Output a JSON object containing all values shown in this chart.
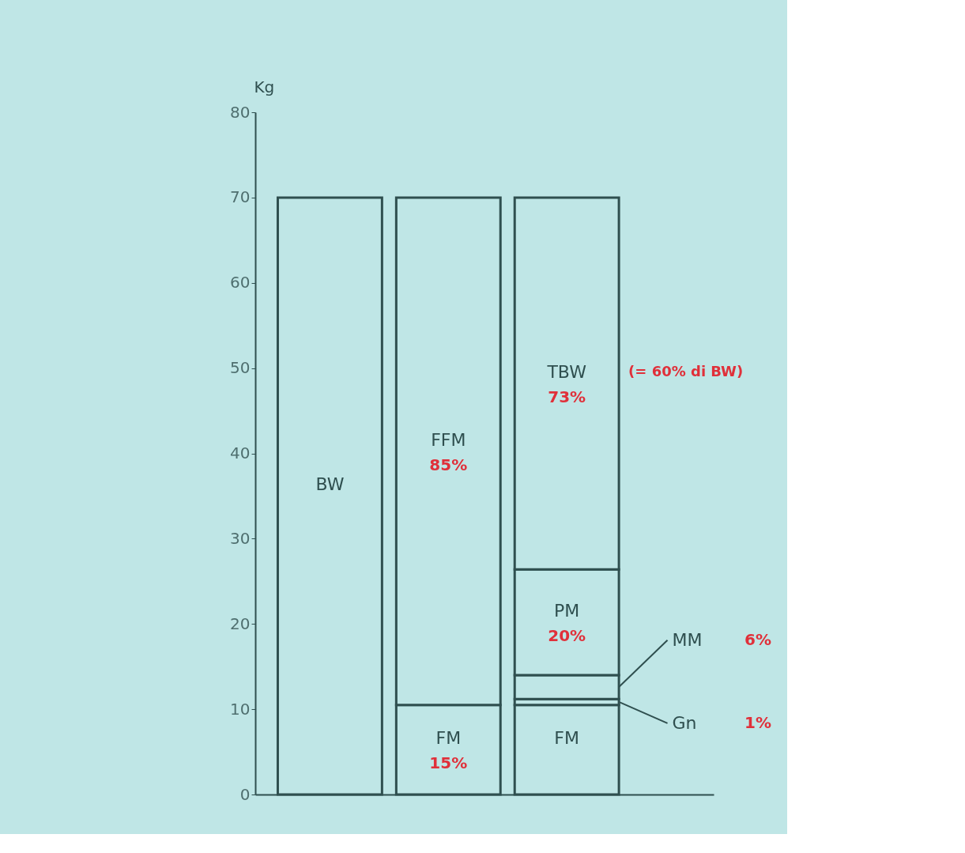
{
  "chart_data": {
    "type": "bar",
    "stacked": true,
    "ylabel": "Kg",
    "categories": [
      null,
      null,
      null
    ],
    "series": [
      {
        "color": "#bfe6e6",
        "values": [
          70,
          10.5,
          10.5
        ],
        "value_labels": [
          "BW",
          "FM 15%",
          "FM"
        ]
      },
      {
        "color": "#bfe6e6",
        "values": [
          null,
          59.5,
          0.7
        ],
        "value_labels": [
          null,
          "FFM 85%",
          "Gn 1%"
        ]
      },
      {
        "color": "#bfe6e6",
        "values": [
          null,
          null,
          2.8
        ],
        "value_labels": [
          null,
          null,
          "MM 6%"
        ]
      },
      {
        "color": "#bfe6e6",
        "values": [
          null,
          null,
          12.4
        ],
        "value_labels": [
          null,
          null,
          "PM 20%"
        ]
      },
      {
        "color": "#bfe6e6",
        "values": [
          null,
          null,
          43.6
        ],
        "value_labels": [
          null,
          null,
          "TBW 73%"
        ]
      }
    ],
    "annotations": [
      "(= 60% di BW)"
    ],
    "ylim": [
      0,
      80
    ],
    "yticks": [
      0,
      10,
      20,
      30,
      40,
      50,
      60,
      70,
      80
    ],
    "tick_labels": "y",
    "grid": false
  }
}
